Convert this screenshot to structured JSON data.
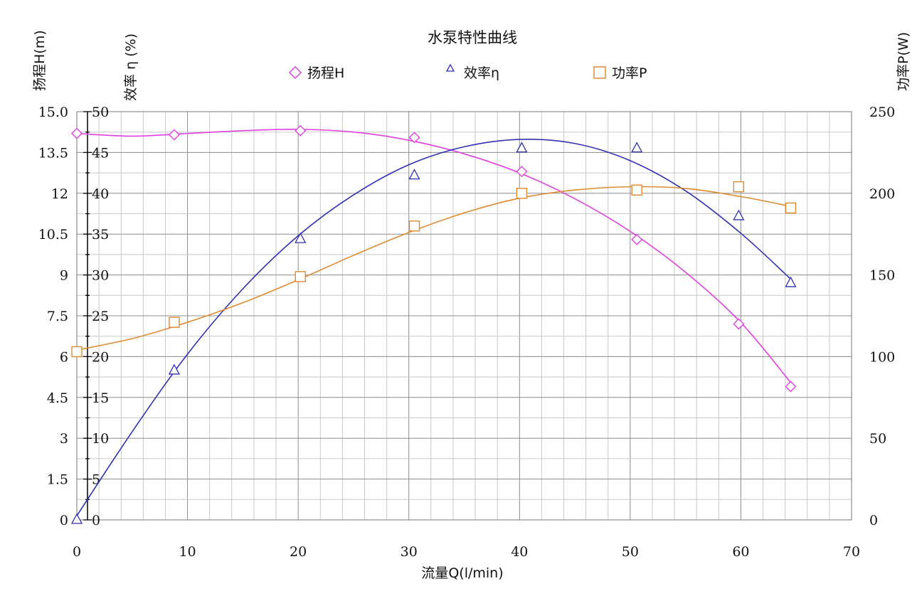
{
  "chart_data": {
    "type": "line",
    "title": "水泵特性曲线",
    "xlabel": "流量Q(l/min)",
    "xlim": [
      0,
      70
    ],
    "x_ticks": [
      0,
      10,
      20,
      30,
      40,
      50,
      60,
      70
    ],
    "y_axes": [
      {
        "label": "扬程H(m)",
        "min": 0,
        "max": 15,
        "ticks": [
          "0",
          "1.5",
          "3",
          "4.5",
          "6",
          "7.5",
          "9",
          "10.5",
          "12",
          "13.5",
          "15.0"
        ]
      },
      {
        "label": "效率 η (%)",
        "min": 0,
        "max": 50,
        "ticks": [
          "0",
          "5",
          "10",
          "15",
          "20",
          "25",
          "30",
          "35",
          "40",
          "45",
          "50"
        ]
      },
      {
        "label": "功率P(W)",
        "min": 0,
        "max": 250,
        "ticks": [
          "0",
          "50",
          "100",
          "150",
          "200",
          "250"
        ]
      }
    ],
    "grid": true,
    "legend_position": "top-center",
    "series": [
      {
        "name": "扬程H",
        "axis": 0,
        "marker": "diamond",
        "color": "#e040e0",
        "x": [
          0,
          8.8,
          20.2,
          30.5,
          40.2,
          50.6,
          59.8,
          64.5
        ],
        "y": [
          14.2,
          14.15,
          14.3,
          14.05,
          12.8,
          10.3,
          7.2,
          4.9
        ],
        "fit": [
          [
            0,
            14.2
          ],
          [
            5,
            14.1
          ],
          [
            10,
            14.2
          ],
          [
            15,
            14.3
          ],
          [
            20,
            14.35
          ],
          [
            25,
            14.25
          ],
          [
            30,
            13.95
          ],
          [
            35,
            13.45
          ],
          [
            40,
            12.75
          ],
          [
            45,
            11.8
          ],
          [
            50,
            10.6
          ],
          [
            55,
            9.1
          ],
          [
            60,
            7.25
          ],
          [
            64.5,
            5.05
          ]
        ]
      },
      {
        "name": "效率η",
        "axis": 1,
        "marker": "triangle",
        "color": "#3030b0",
        "x": [
          0,
          8.8,
          20.2,
          30.5,
          40.2,
          50.6,
          59.8,
          64.5
        ],
        "y": [
          0,
          18.3,
          34.4,
          42.2,
          45.5,
          45.5,
          37.2,
          29.0
        ],
        "fit": [
          [
            0,
            0.5
          ],
          [
            5,
            10.8
          ],
          [
            10,
            20.3
          ],
          [
            15,
            28.3
          ],
          [
            20,
            34.8
          ],
          [
            25,
            39.8
          ],
          [
            30,
            43.5
          ],
          [
            35,
            45.7
          ],
          [
            40,
            46.6
          ],
          [
            45,
            46.1
          ],
          [
            50,
            44.0
          ],
          [
            55,
            40.3
          ],
          [
            60,
            35.1
          ],
          [
            64.5,
            29.5
          ]
        ]
      },
      {
        "name": "功率P",
        "axis": 2,
        "marker": "square",
        "color": "#e08a30",
        "x": [
          0,
          8.8,
          20.2,
          30.5,
          40.2,
          50.6,
          59.8,
          64.5
        ],
        "y": [
          103,
          121,
          149,
          180,
          200,
          202,
          204,
          191
        ],
        "fit": [
          [
            0,
            104
          ],
          [
            5,
            111
          ],
          [
            10,
            121
          ],
          [
            15,
            133
          ],
          [
            20,
            147
          ],
          [
            25,
            162
          ],
          [
            30,
            176
          ],
          [
            35,
            188
          ],
          [
            40,
            197
          ],
          [
            45,
            202
          ],
          [
            50,
            204
          ],
          [
            55,
            203
          ],
          [
            60,
            198
          ],
          [
            64.5,
            192
          ]
        ]
      }
    ]
  }
}
